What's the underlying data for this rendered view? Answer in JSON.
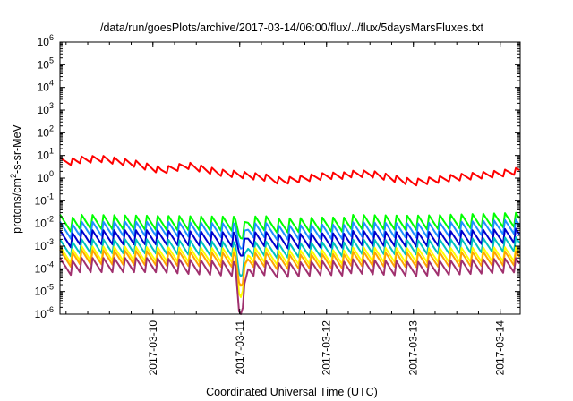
{
  "chart_data": {
    "type": "line",
    "title": "/data/run/goesPlots/archive/2017-03-14/06:00/flux/../flux/5daysMarsFluxes.txt",
    "xlabel": "Coordinated Universal Time (UTC)",
    "ylabel": "protons/cm2-s-sr-MeV",
    "ylabel_parts": {
      "pre": "protons/cm",
      "sup": "2",
      "post": "-s-sr-MeV"
    },
    "yscale": "log",
    "ylim": [
      1e-06,
      1000000
    ],
    "yticks": [
      {
        "base": "10",
        "exp": "-6"
      },
      {
        "base": "10",
        "exp": "-5"
      },
      {
        "base": "10",
        "exp": "-4"
      },
      {
        "base": "10",
        "exp": "-3"
      },
      {
        "base": "10",
        "exp": "-2"
      },
      {
        "base": "10",
        "exp": "-1"
      },
      {
        "base": "10",
        "exp": "0"
      },
      {
        "base": "10",
        "exp": "1"
      },
      {
        "base": "10",
        "exp": "2"
      },
      {
        "base": "10",
        "exp": "3"
      },
      {
        "base": "10",
        "exp": "4"
      },
      {
        "base": "10",
        "exp": "5"
      },
      {
        "base": "10",
        "exp": "6"
      }
    ],
    "xlim_days": [
      -1.07,
      4.23
    ],
    "xticks": [
      "2017-03-10",
      "2017-03-11",
      "2017-03-12",
      "2017-03-13",
      "2017-03-14"
    ],
    "grid": false,
    "legend": "none",
    "samples_per_day": 24,
    "series": [
      {
        "color": "#ff0000",
        "sawtooth_period_hours": 3,
        "peaks": [
          {
            "t": -1.07,
            "v": 8
          },
          {
            "t": -0.6,
            "v": 10
          },
          {
            "t": -0.2,
            "v": 6
          },
          {
            "t": 0.1,
            "v": 3
          },
          {
            "t": 0.4,
            "v": 5
          },
          {
            "t": 0.75,
            "v": 2.5
          },
          {
            "t": 1.0,
            "v": 2
          },
          {
            "t": 1.5,
            "v": 1.2
          },
          {
            "t": 2.0,
            "v": 2.0
          },
          {
            "t": 2.5,
            "v": 2.2
          },
          {
            "t": 3.0,
            "v": 0.9
          },
          {
            "t": 3.5,
            "v": 1.5
          },
          {
            "t": 4.0,
            "v": 2.2
          },
          {
            "t": 4.23,
            "v": 3
          }
        ]
      },
      {
        "color": "#00ff00",
        "sawtooth_period_hours": 3,
        "peaks": [
          {
            "t": -1.07,
            "v": 0.025
          },
          {
            "t": 0.0,
            "v": 0.022
          },
          {
            "t": 0.95,
            "v": 0.02
          },
          {
            "t": 1.0,
            "v": 0.006
          },
          {
            "t": 1.1,
            "v": 0.02
          },
          {
            "t": 2.0,
            "v": 0.025
          },
          {
            "t": 3.0,
            "v": 0.022
          },
          {
            "t": 4.23,
            "v": 0.03
          }
        ]
      },
      {
        "color": "#1e90ff",
        "sawtooth_period_hours": 3,
        "peaks": [
          {
            "t": -1.07,
            "v": 0.012
          },
          {
            "t": 0.0,
            "v": 0.012
          },
          {
            "t": 0.95,
            "v": 0.01
          },
          {
            "t": 1.0,
            "v": 0.002
          },
          {
            "t": 1.1,
            "v": 0.01
          },
          {
            "t": 2.0,
            "v": 0.012
          },
          {
            "t": 3.0,
            "v": 0.01
          },
          {
            "t": 4.23,
            "v": 0.015
          }
        ]
      },
      {
        "color": "#0000cd",
        "sawtooth_period_hours": 3,
        "peaks": [
          {
            "t": -1.07,
            "v": 0.005
          },
          {
            "t": 0.0,
            "v": 0.005
          },
          {
            "t": 0.95,
            "v": 0.004
          },
          {
            "t": 1.0,
            "v": 0.001
          },
          {
            "t": 1.1,
            "v": 0.004
          },
          {
            "t": 2.0,
            "v": 0.005
          },
          {
            "t": 3.0,
            "v": 0.004
          },
          {
            "t": 4.23,
            "v": 0.006
          }
        ]
      },
      {
        "color": "#00c0c0",
        "sawtooth_period_hours": 3,
        "peaks": [
          {
            "t": -1.07,
            "v": 0.002
          },
          {
            "t": 0.0,
            "v": 0.002
          },
          {
            "t": 0.95,
            "v": 0.0015
          },
          {
            "t": 1.0,
            "v": 0.0001
          },
          {
            "t": 1.1,
            "v": 0.0015
          },
          {
            "t": 2.0,
            "v": 0.002
          },
          {
            "t": 3.0,
            "v": 0.0018
          },
          {
            "t": 4.23,
            "v": 0.0025
          }
        ]
      },
      {
        "color": "#ffff00",
        "sawtooth_period_hours": 3,
        "peaks": [
          {
            "t": -1.07,
            "v": 0.001
          },
          {
            "t": 0.0,
            "v": 0.0009
          },
          {
            "t": 0.95,
            "v": 0.0008
          },
          {
            "t": 1.0,
            "v": 1e-05
          },
          {
            "t": 1.1,
            "v": 0.0008
          },
          {
            "t": 2.0,
            "v": 0.0009
          },
          {
            "t": 3.0,
            "v": 0.0008
          },
          {
            "t": 4.23,
            "v": 0.0009
          }
        ]
      },
      {
        "color": "#ffa500",
        "sawtooth_period_hours": 3,
        "peaks": [
          {
            "t": -1.07,
            "v": 0.0007
          },
          {
            "t": 0.0,
            "v": 0.0006
          },
          {
            "t": 0.95,
            "v": 0.0005
          },
          {
            "t": 1.0,
            "v": 4e-05
          },
          {
            "t": 1.1,
            "v": 0.0005
          },
          {
            "t": 2.0,
            "v": 0.0006
          },
          {
            "t": 3.0,
            "v": 0.0005
          },
          {
            "t": 4.23,
            "v": 0.0006
          }
        ]
      },
      {
        "color": "#a0306e",
        "sawtooth_period_hours": 3,
        "peaks": [
          {
            "t": -1.07,
            "v": 0.0003
          },
          {
            "t": 0.0,
            "v": 0.0003
          },
          {
            "t": 0.95,
            "v": 0.0002
          },
          {
            "t": 1.0,
            "v": 1.5e-06
          },
          {
            "t": 1.1,
            "v": 0.0002
          },
          {
            "t": 2.0,
            "v": 0.0003
          },
          {
            "t": 3.0,
            "v": 0.0002
          },
          {
            "t": 4.23,
            "v": 0.0003
          }
        ]
      }
    ]
  }
}
